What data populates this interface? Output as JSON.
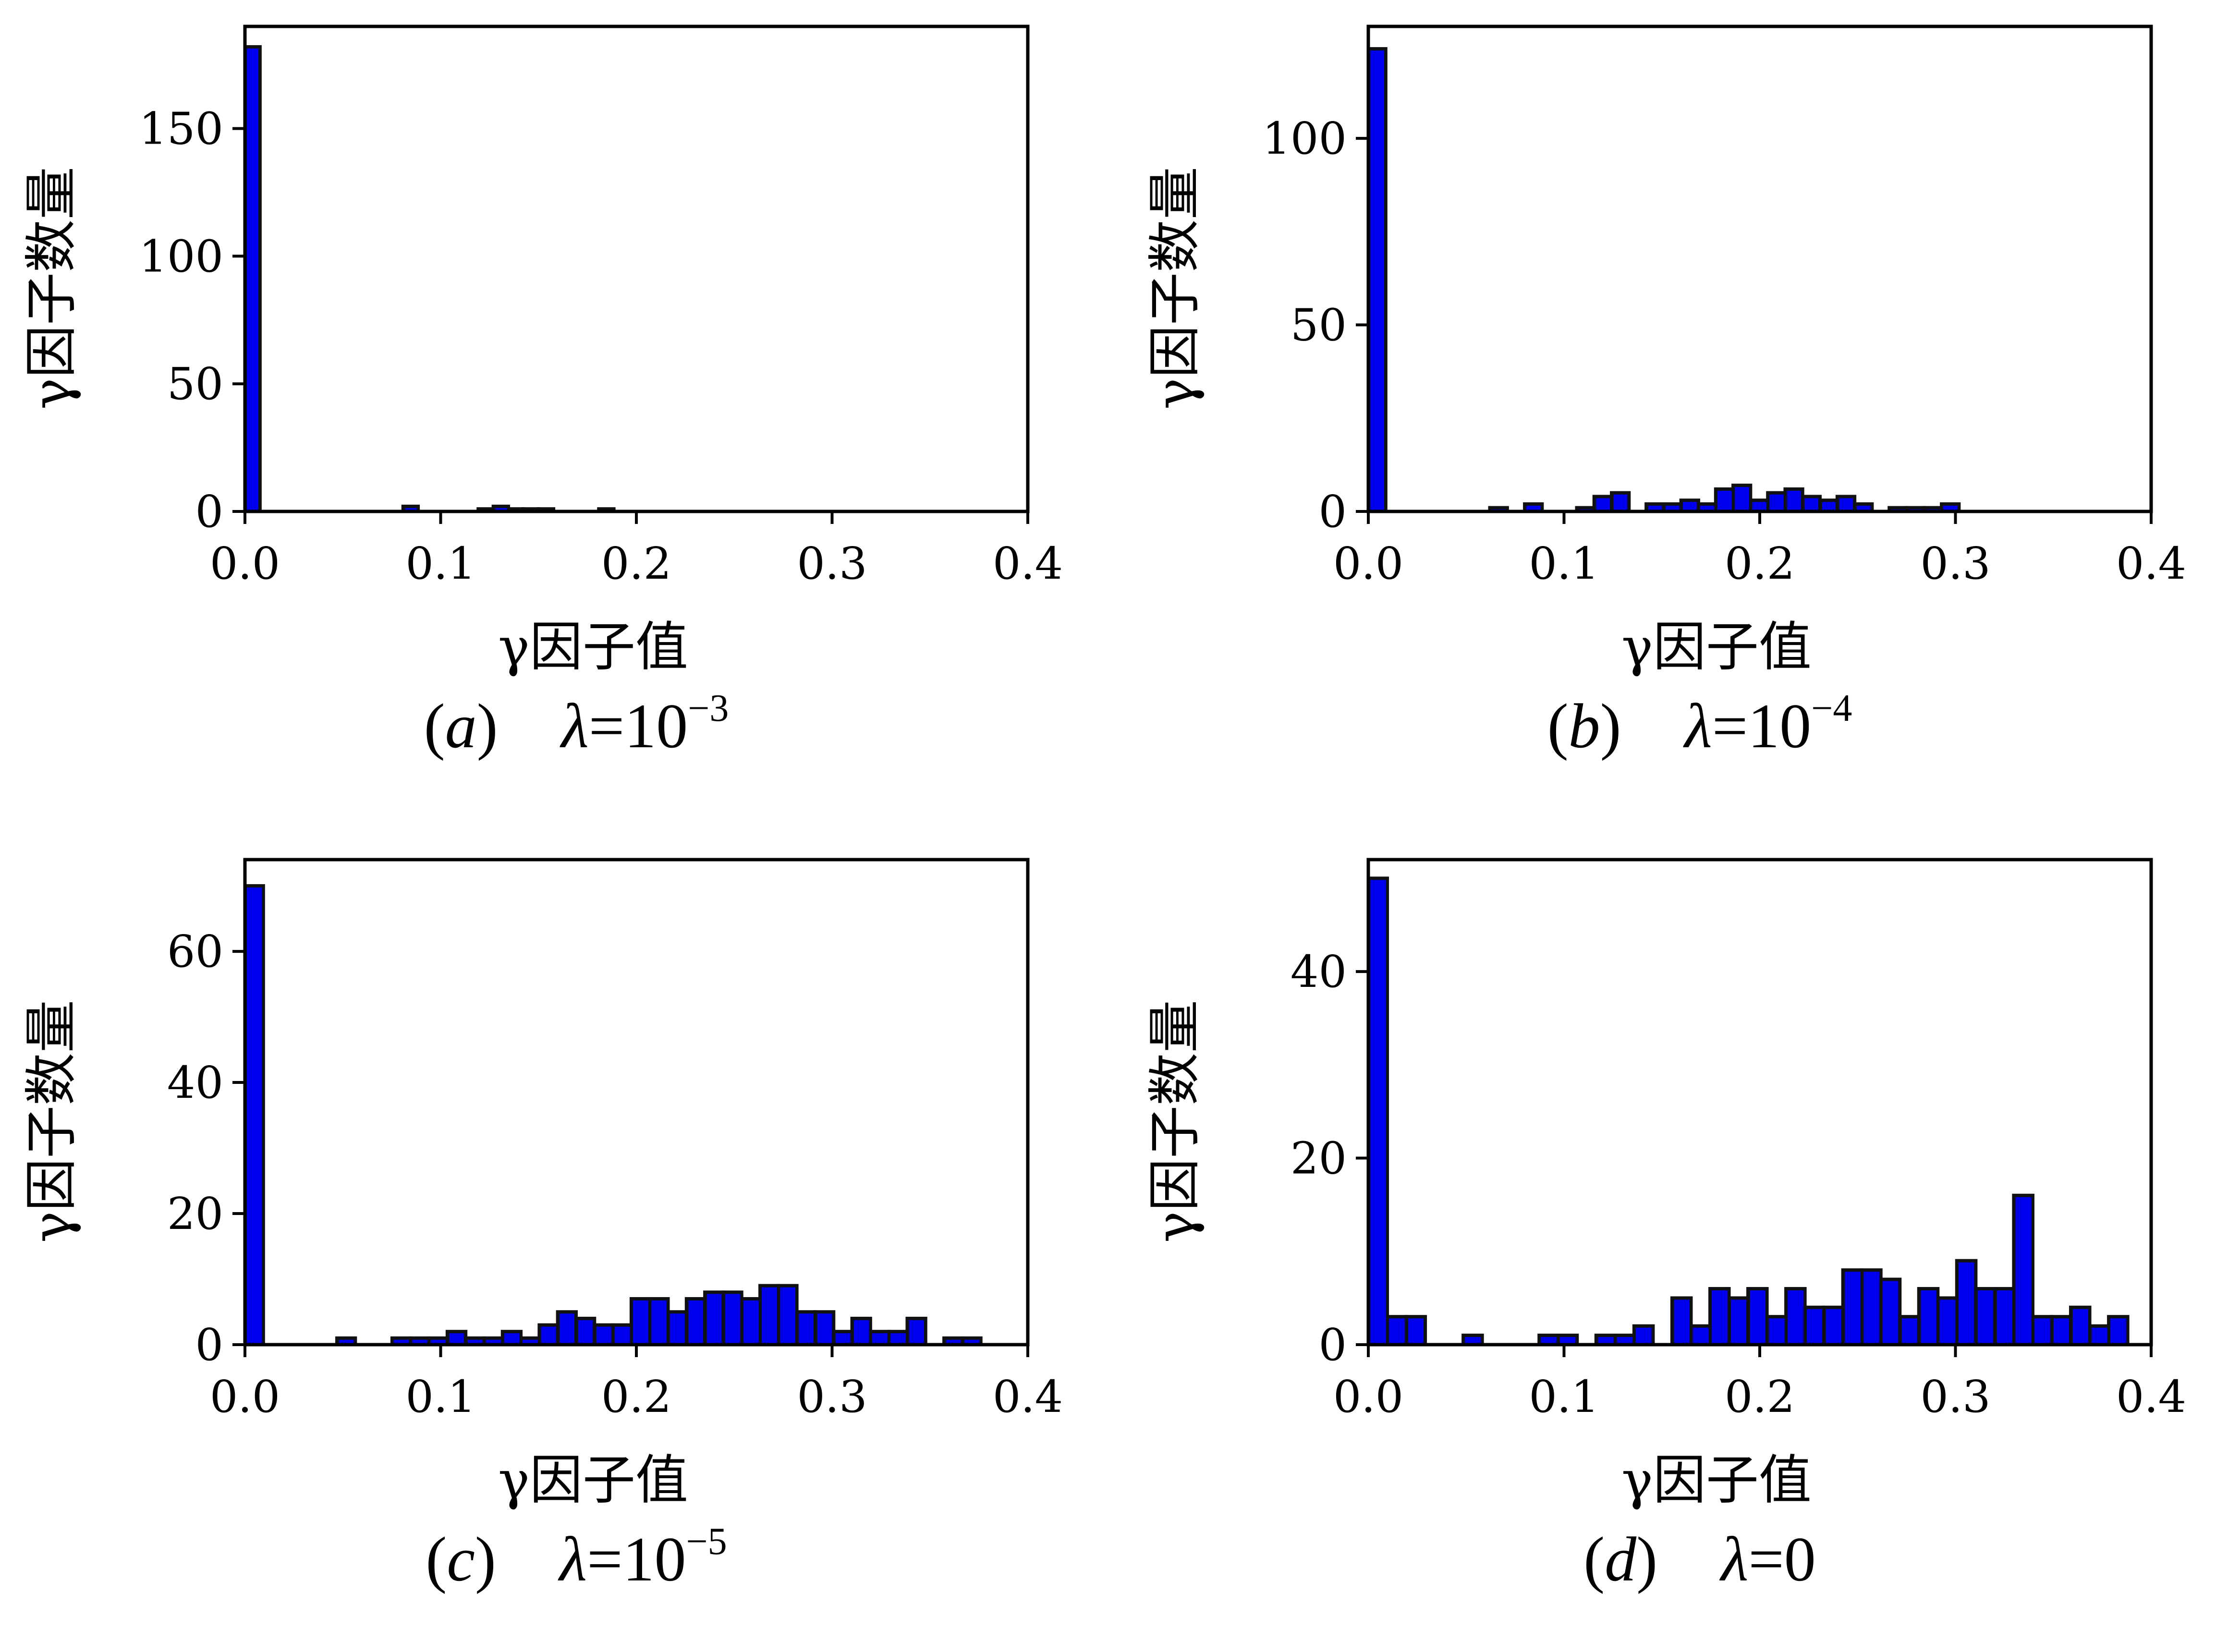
{
  "colors": {
    "bar_fill": "#0000ee",
    "bar_edge": "#111111",
    "axis": "#000000"
  },
  "chart_data": [
    {
      "type": "bar",
      "id": "a",
      "caption": {
        "letter": "a",
        "lambda_symbol": "λ",
        "equals": "=10",
        "exponent": "−3"
      },
      "xlabel": "γ因子值",
      "ylabel": "γ因子数量",
      "xlim": [
        0.0,
        0.4
      ],
      "ylim": [
        0,
        190
      ],
      "x_ticks": [
        "0.0",
        "0.1",
        "0.2",
        "0.3",
        "0.4"
      ],
      "y_ticks": [
        0,
        50,
        100,
        150
      ],
      "bin_width": 0.0077,
      "bins_start": [
        0.0,
        0.0808,
        0.1115,
        0.1192,
        0.1269,
        0.1346,
        0.1423,
        0.15,
        0.1577,
        0.1654,
        0.1731,
        0.1808
      ],
      "values": [
        182,
        2,
        0,
        1,
        2,
        1,
        1,
        1,
        0,
        0,
        0,
        1
      ],
      "_": "one bar per bin"
    },
    {
      "type": "bar",
      "id": "b",
      "caption": {
        "letter": "b",
        "lambda_symbol": "λ",
        "equals": "=10",
        "exponent": "−4"
      },
      "xlabel": "γ因子值",
      "ylabel": "γ因子数量",
      "xlim": [
        0.0,
        0.4
      ],
      "ylim": [
        0,
        130
      ],
      "x_ticks": [
        "0.0",
        "0.1",
        "0.2",
        "0.3",
        "0.4"
      ],
      "y_ticks": [
        0,
        50,
        100
      ],
      "bin_width": 0.0089,
      "bins_start": [
        0.0,
        0.0621,
        0.0799,
        0.1065,
        0.1154,
        0.1243,
        0.1331,
        0.142,
        0.1509,
        0.1598,
        0.1686,
        0.1775,
        0.1864,
        0.1953,
        0.2041,
        0.213,
        0.2219,
        0.2308,
        0.2396,
        0.2485,
        0.2574,
        0.2662,
        0.2751,
        0.284,
        0.2929
      ],
      "values": [
        124,
        1,
        2,
        1,
        4,
        5,
        0,
        2,
        2,
        3,
        2,
        6,
        7,
        3,
        5,
        6,
        4,
        3,
        4,
        2,
        0,
        1,
        1,
        1,
        2
      ]
    },
    {
      "type": "bar",
      "id": "c",
      "caption": {
        "letter": "c",
        "lambda_symbol": "λ",
        "equals": "=10",
        "exponent": "−5"
      },
      "xlabel": "γ因子值",
      "ylabel": "γ因子数量",
      "xlim": [
        0.0,
        0.4
      ],
      "ylim": [
        0,
        74
      ],
      "x_ticks": [
        "0.0",
        "0.1",
        "0.2",
        "0.3",
        "0.4"
      ],
      "y_ticks": [
        0,
        20,
        40,
        60
      ],
      "bin_width": 0.0094,
      "bins_start": [
        0.0,
        0.047,
        0.0752,
        0.0846,
        0.094,
        0.1034,
        0.1128,
        0.1222,
        0.1316,
        0.141,
        0.1504,
        0.1598,
        0.1692,
        0.1786,
        0.188,
        0.1974,
        0.2068,
        0.2162,
        0.2256,
        0.235,
        0.2444,
        0.2538,
        0.2632,
        0.2726,
        0.282,
        0.2914,
        0.3008,
        0.3102,
        0.3196,
        0.329,
        0.3384,
        0.3572,
        0.3666
      ],
      "values": [
        70,
        1,
        1,
        1,
        1,
        2,
        1,
        1,
        2,
        1,
        3,
        5,
        4,
        3,
        3,
        7,
        7,
        5,
        7,
        8,
        8,
        7,
        9,
        9,
        5,
        5,
        2,
        4,
        2,
        2,
        4,
        1,
        1
      ]
    },
    {
      "type": "bar",
      "id": "d",
      "caption": {
        "letter": "d",
        "lambda_symbol": "λ",
        "equals": "=0",
        "exponent": ""
      },
      "xlabel": "γ因子值",
      "ylabel": "γ因子数量",
      "xlim": [
        0.0,
        0.4
      ],
      "ylim": [
        0,
        52
      ],
      "x_ticks": [
        "0.0",
        "0.1",
        "0.2",
        "0.3",
        "0.4"
      ],
      "y_ticks": [
        0,
        20,
        40
      ],
      "bin_width": 0.0097,
      "bins_start": [
        0.0,
        0.0097,
        0.0194,
        0.0485,
        0.0873,
        0.097,
        0.1164,
        0.1261,
        0.1358,
        0.1552,
        0.1649,
        0.1746,
        0.1843,
        0.194,
        0.2037,
        0.2134,
        0.2231,
        0.2328,
        0.2425,
        0.2522,
        0.2619,
        0.2716,
        0.2813,
        0.291,
        0.3007,
        0.3104,
        0.3201,
        0.3298,
        0.3395,
        0.3492,
        0.3589,
        0.3686,
        0.3783
      ],
      "values": [
        50,
        3,
        3,
        1,
        1,
        1,
        1,
        1,
        2,
        5,
        2,
        6,
        5,
        6,
        3,
        6,
        4,
        4,
        8,
        8,
        7,
        3,
        6,
        5,
        9,
        6,
        6,
        16,
        3,
        3,
        4,
        2,
        3
      ]
    }
  ]
}
